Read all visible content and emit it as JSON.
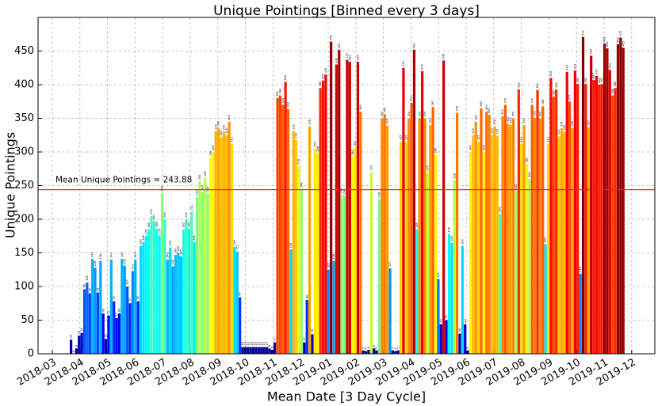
{
  "chart_data": {
    "type": "bar",
    "title": "Unique Pointings [Binned every 3 days]",
    "x_label": "Mean Date [3 Day Cycle]",
    "y_label": "Unique Pointings",
    "colormap": "jet",
    "grid": true,
    "ylim": [
      0,
      500
    ],
    "yticks": [
      0,
      50,
      100,
      150,
      200,
      250,
      300,
      350,
      400,
      450
    ],
    "xticks": [
      "2018-03",
      "2018-04",
      "2018-05",
      "2018-06",
      "2018-07",
      "2018-08",
      "2018-09",
      "2018-10",
      "2018-11",
      "2018-12",
      "2019-01",
      "2019-02",
      "2019-03",
      "2019-04",
      "2019-05",
      "2019-06",
      "2019-07",
      "2019-08",
      "2019-09",
      "2019-10",
      "2019-11",
      "2019-12"
    ],
    "mean_line": {
      "value": 243.88,
      "label": "Mean Unique Pointings = 243.88",
      "color": "#d62728"
    },
    "values": [
      21,
      0,
      8,
      27,
      31,
      96,
      106,
      90,
      141,
      128,
      91,
      138,
      60,
      22,
      57,
      140,
      78,
      53,
      60,
      141,
      131,
      100,
      75,
      123,
      140,
      78,
      160,
      166,
      175,
      185,
      205,
      197,
      186,
      176,
      239,
      200,
      140,
      158,
      130,
      147,
      150,
      145,
      185,
      200,
      186,
      211,
      166,
      233,
      256,
      240,
      262,
      238,
      292,
      300,
      331,
      336,
      322,
      330,
      325,
      345,
      312,
      159,
      152,
      84,
      10,
      10,
      10,
      10,
      10,
      10,
      10,
      10,
      10,
      10,
      8,
      6,
      17,
      380,
      384,
      370,
      404,
      364,
      155,
      331,
      318,
      279,
      245,
      17,
      80,
      338,
      29,
      305,
      298,
      395,
      406,
      415,
      125,
      464,
      138,
      430,
      452,
      236,
      234,
      437,
      434,
      293,
      307,
      434,
      360,
      5,
      4,
      6,
      270,
      8,
      5,
      230,
      350,
      356,
      339,
      127,
      5,
      4,
      5,
      315,
      425,
      315,
      350,
      373,
      452,
      185,
      350,
      420,
      350,
      270,
      340,
      367,
      296,
      111,
      44,
      436,
      50,
      178,
      165,
      258,
      358,
      30,
      160,
      44,
      5,
      300,
      325,
      345,
      315,
      365,
      300,
      360,
      355,
      325,
      338,
      324,
      208,
      353,
      370,
      342,
      340,
      350,
      242,
      393,
      312,
      340,
      282,
      260,
      370,
      351,
      392,
      350,
      368,
      163,
      312,
      410,
      382,
      393,
      323,
      335,
      330,
      419,
      375,
      336,
      421,
      401,
      119,
      471,
      401,
      337,
      443,
      407,
      413,
      400,
      401,
      461,
      454,
      422,
      384,
      395,
      460,
      470,
      455
    ]
  }
}
